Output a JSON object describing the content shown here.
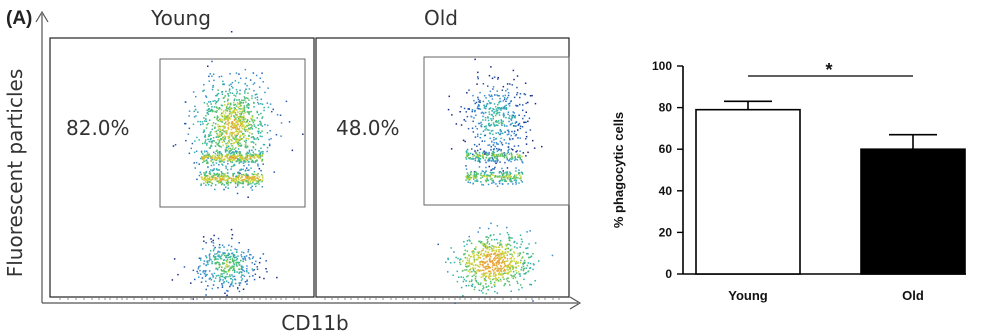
{
  "panel_label": "(A)",
  "flow": {
    "y_axis_label": "Fluorescent particles",
    "x_axis_label": "CD11b",
    "plots": [
      {
        "title": "Young",
        "gate_percent": "82.0%"
      },
      {
        "title": "Old",
        "gate_percent": "48.0%"
      }
    ]
  },
  "chart_data": {
    "type": "bar",
    "categories": [
      "Young",
      "Old"
    ],
    "values": [
      79,
      60
    ],
    "errors": [
      4,
      7
    ],
    "bar_colors": [
      "#ffffff",
      "#000000"
    ],
    "ylabel": "% phagocytic cells",
    "xlabel": "",
    "ylim": [
      0,
      100
    ],
    "yticks": [
      0,
      20,
      40,
      60,
      80,
      100
    ],
    "significance": "*"
  }
}
